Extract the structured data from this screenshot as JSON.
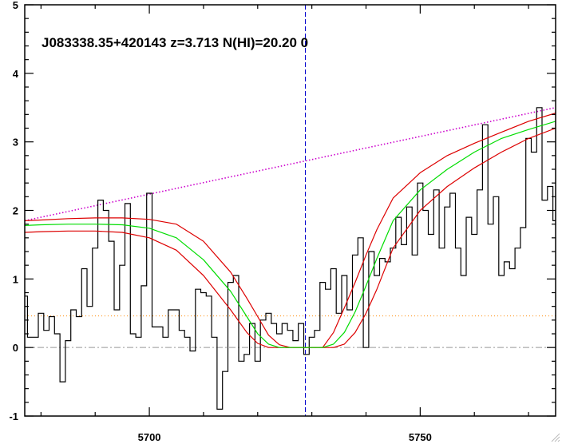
{
  "chart_data": {
    "type": "line",
    "title": "J083338.35+420143 z=3.713 N(HI)=20.20 0",
    "xlabel": "",
    "ylabel": "",
    "xlim": [
      5677,
      5775
    ],
    "ylim": [
      -1,
      5
    ],
    "x_ticks": [
      5700,
      5750
    ],
    "y_ticks": [
      -1,
      0,
      1,
      2,
      3,
      4,
      5
    ],
    "x_minor_step": 10,
    "y_minor_step": 0.2,
    "line_center": 5728.8,
    "zero_level": 0,
    "flux": {
      "x": [
        5677,
        5678,
        5679,
        5680,
        5681,
        5682,
        5683,
        5684,
        5685,
        5686,
        5687,
        5688,
        5689,
        5690,
        5691,
        5692,
        5693,
        5694,
        5695,
        5696,
        5697,
        5698,
        5699,
        5700,
        5701,
        5702,
        5703,
        5704,
        5705,
        5706,
        5707,
        5708,
        5709,
        5710,
        5711,
        5712,
        5713,
        5714,
        5715,
        5716,
        5717,
        5718,
        5719,
        5720,
        5721,
        5722,
        5723,
        5724,
        5725,
        5726,
        5727,
        5728,
        5729,
        5730,
        5731,
        5732,
        5733,
        5734,
        5735,
        5736,
        5737,
        5738,
        5739,
        5740,
        5741,
        5742,
        5743,
        5744,
        5745,
        5746,
        5747,
        5748,
        5749,
        5750,
        5751,
        5752,
        5753,
        5754,
        5755,
        5756,
        5757,
        5758,
        5759,
        5760,
        5761,
        5762,
        5763,
        5764,
        5765,
        5766,
        5767,
        5768,
        5769,
        5770,
        5771,
        5772,
        5773,
        5774,
        5775
      ],
      "values": [
        0.75,
        0.15,
        0.15,
        0.5,
        0.25,
        0.45,
        0.2,
        -0.5,
        0.1,
        0.55,
        0.45,
        1.15,
        0.6,
        1.45,
        2.15,
        2.0,
        1.55,
        0.55,
        1.2,
        2.1,
        0.2,
        0.15,
        0.9,
        2.25,
        0.3,
        0.3,
        0.15,
        0.55,
        0.55,
        0.25,
        0.15,
        -0.05,
        0.85,
        0.8,
        0.75,
        0.15,
        -0.9,
        -0.35,
        0.95,
        1.05,
        -0.2,
        -0.1,
        0.35,
        -0.2,
        0.4,
        0.5,
        0.35,
        0.2,
        0.35,
        0.25,
        0.1,
        0.35,
        -0.1,
        0.15,
        0.25,
        0.95,
        0.85,
        1.15,
        0.5,
        1.05,
        0.55,
        1.35,
        1.6,
        0.0,
        1.4,
        1.05,
        1.3,
        1.25,
        1.45,
        1.9,
        1.5,
        2.05,
        1.35,
        2.4,
        2.0,
        1.65,
        2.3,
        1.45,
        2.05,
        2.25,
        1.45,
        1.05,
        1.9,
        1.65,
        2.3,
        3.25,
        1.8,
        2.2,
        1.05,
        1.25,
        1.15,
        1.45,
        1.75,
        3.05,
        2.85,
        3.5,
        2.15,
        2.35,
        1.85
      ]
    },
    "continuum": {
      "x": [
        5677,
        5775
      ],
      "values": [
        1.85,
        3.5
      ]
    },
    "error_level": 0.46,
    "best_fit": {
      "x": [
        5677,
        5680,
        5685,
        5690,
        5695,
        5700,
        5705,
        5710,
        5715,
        5718,
        5720,
        5722,
        5724,
        5726,
        5728,
        5730,
        5732,
        5734,
        5736,
        5738,
        5740,
        5742,
        5745,
        5750,
        5755,
        5760,
        5765,
        5770,
        5775
      ],
      "values": [
        1.78,
        1.79,
        1.8,
        1.8,
        1.79,
        1.74,
        1.6,
        1.28,
        0.82,
        0.45,
        0.2,
        0.05,
        0.0,
        0.0,
        0.0,
        0.0,
        0.0,
        0.05,
        0.22,
        0.52,
        0.9,
        1.3,
        1.85,
        2.3,
        2.6,
        2.85,
        3.05,
        3.18,
        3.3
      ]
    },
    "fit_upper": {
      "x": [
        5677,
        5680,
        5685,
        5690,
        5695,
        5700,
        5705,
        5710,
        5715,
        5718,
        5720,
        5722,
        5724,
        5726,
        5728,
        5730,
        5732,
        5734,
        5736,
        5738,
        5740,
        5742,
        5745,
        5750,
        5755,
        5760,
        5765,
        5770,
        5775
      ],
      "values": [
        1.85,
        1.86,
        1.88,
        1.89,
        1.89,
        1.87,
        1.8,
        1.55,
        1.1,
        0.72,
        0.45,
        0.18,
        0.04,
        0.0,
        0.0,
        0.0,
        0.0,
        0.22,
        0.58,
        0.95,
        1.35,
        1.72,
        2.18,
        2.55,
        2.8,
        2.98,
        3.14,
        3.3,
        3.42
      ]
    },
    "fit_lower": {
      "x": [
        5677,
        5680,
        5685,
        5690,
        5695,
        5700,
        5705,
        5710,
        5715,
        5718,
        5720,
        5722,
        5724,
        5726,
        5728,
        5730,
        5732,
        5734,
        5736,
        5738,
        5740,
        5742,
        5745,
        5750,
        5755,
        5760,
        5765,
        5770,
        5775
      ],
      "values": [
        1.68,
        1.69,
        1.7,
        1.7,
        1.68,
        1.6,
        1.42,
        1.05,
        0.55,
        0.22,
        0.06,
        0.0,
        0.0,
        0.0,
        0.0,
        0.0,
        0.0,
        0.0,
        0.05,
        0.22,
        0.5,
        0.85,
        1.45,
        2.0,
        2.35,
        2.62,
        2.85,
        3.05,
        3.2
      ]
    },
    "colors": {
      "flux": "#000000",
      "continuum": "#cc00cc",
      "best_fit": "#00dd00",
      "fit_bounds": "#dd0000",
      "error": "#ff8800",
      "zero_line": "#999999",
      "line_center": "#0000cc",
      "axes": "#000000"
    },
    "grid": false,
    "legend": "none"
  }
}
